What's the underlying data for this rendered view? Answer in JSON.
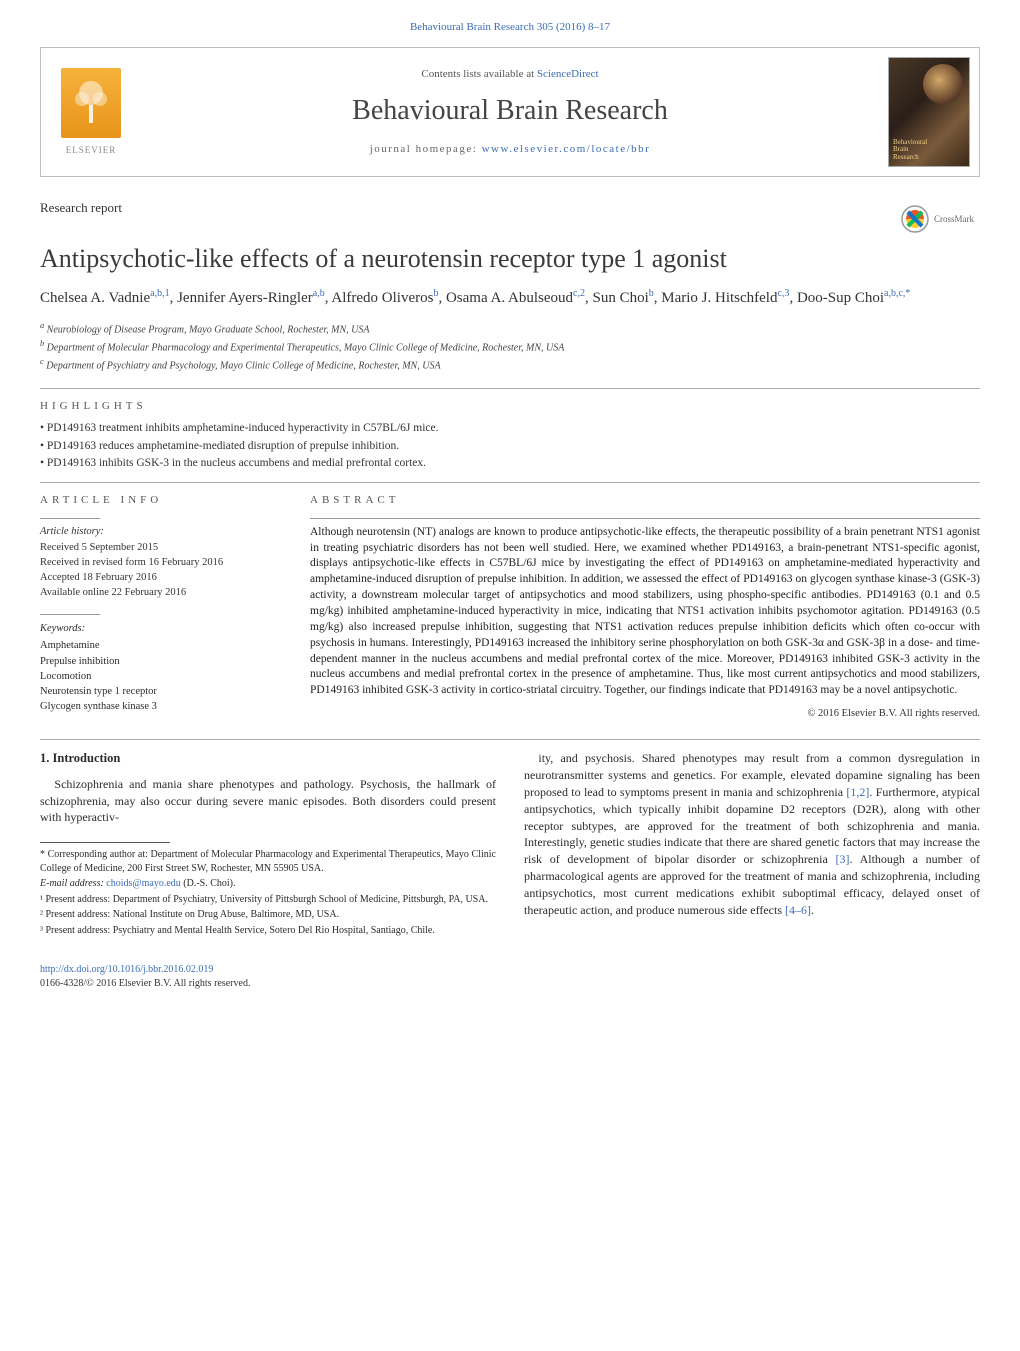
{
  "colors": {
    "link": "#3b6db5",
    "text": "#2b2b2b",
    "border": "#bfbfbf",
    "elsevier_orange": "#e8941b"
  },
  "citation": "Behavioural Brain Research 305 (2016) 8–17",
  "header": {
    "contents_prefix": "Contents lists available at ",
    "contents_link": "ScienceDirect",
    "journal_title": "Behavioural Brain Research",
    "homepage_prefix": "journal homepage: ",
    "homepage_url": "www.elsevier.com/locate/bbr",
    "publisher": "ELSEVIER"
  },
  "article": {
    "type": "Research report",
    "title": "Antipsychotic-like effects of a neurotensin receptor type 1 agonist",
    "crossmark_label": "CrossMark"
  },
  "authors": [
    {
      "name": "Chelsea A. Vadnie",
      "sup": "a,b,1"
    },
    {
      "name": "Jennifer Ayers-Ringler",
      "sup": "a,b"
    },
    {
      "name": "Alfredo Oliveros",
      "sup": "b"
    },
    {
      "name": "Osama A. Abulseoud",
      "sup": "c,2"
    },
    {
      "name": "Sun Choi",
      "sup": "b"
    },
    {
      "name": "Mario J. Hitschfeld",
      "sup": "c,3"
    },
    {
      "name": "Doo-Sup Choi",
      "sup": "a,b,c,*"
    }
  ],
  "affiliations": [
    {
      "label": "a",
      "text": "Neurobiology of Disease Program, Mayo Graduate School, Rochester, MN, USA"
    },
    {
      "label": "b",
      "text": "Department of Molecular Pharmacology and Experimental Therapeutics, Mayo Clinic College of Medicine, Rochester, MN, USA"
    },
    {
      "label": "c",
      "text": "Department of Psychiatry and Psychology, Mayo Clinic College of Medicine, Rochester, MN, USA"
    }
  ],
  "highlights": {
    "label": "HIGHLIGHTS",
    "items": [
      "PD149163 treatment inhibits amphetamine-induced hyperactivity in C57BL/6J mice.",
      "PD149163 reduces amphetamine-mediated disruption of prepulse inhibition.",
      "PD149163 inhibits GSK-3 in the nucleus accumbens and medial prefrontal cortex."
    ]
  },
  "article_info": {
    "label": "ARTICLE INFO",
    "history_title": "Article history:",
    "history": [
      "Received 5 September 2015",
      "Received in revised form 16 February 2016",
      "Accepted 18 February 2016",
      "Available online 22 February 2016"
    ],
    "keywords_title": "Keywords:",
    "keywords": [
      "Amphetamine",
      "Prepulse inhibition",
      "Locomotion",
      "Neurotensin type 1 receptor",
      "Glycogen synthase kinase 3"
    ]
  },
  "abstract": {
    "label": "ABSTRACT",
    "text": "Although neurotensin (NT) analogs are known to produce antipsychotic-like effects, the therapeutic possibility of a brain penetrant NTS1 agonist in treating psychiatric disorders has not been well studied. Here, we examined whether PD149163, a brain-penetrant NTS1-specific agonist, displays antipsychotic-like effects in C57BL/6J mice by investigating the effect of PD149163 on amphetamine-mediated hyperactivity and amphetamine-induced disruption of prepulse inhibition. In addition, we assessed the effect of PD149163 on glycogen synthase kinase-3 (GSK-3) activity, a downstream molecular target of antipsychotics and mood stabilizers, using phospho-specific antibodies. PD149163 (0.1 and 0.5 mg/kg) inhibited amphetamine-induced hyperactivity in mice, indicating that NTS1 activation inhibits psychomotor agitation. PD149163 (0.5 mg/kg) also increased prepulse inhibition, suggesting that NTS1 activation reduces prepulse inhibition deficits which often co-occur with psychosis in humans. Interestingly, PD149163 increased the inhibitory serine phosphorylation on both GSK-3α and GSK-3β in a dose- and time-dependent manner in the nucleus accumbens and medial prefrontal cortex of the mice. Moreover, PD149163 inhibited GSK-3 activity in the nucleus accumbens and medial prefrontal cortex in the presence of amphetamine. Thus, like most current antipsychotics and mood stabilizers, PD149163 inhibited GSK-3 activity in cortico-striatal circuitry. Together, our findings indicate that PD149163 may be a novel antipsychotic.",
    "copyright": "© 2016 Elsevier B.V. All rights reserved."
  },
  "intro": {
    "heading": "1. Introduction",
    "para1": "Schizophrenia and mania share phenotypes and pathology. Psychosis, the hallmark of schizophrenia, may also occur during severe manic episodes. Both disorders could present with hyperactiv-",
    "para2_a": "ity, and psychosis. Shared phenotypes may result from a common dysregulation in neurotransmitter systems and genetics. For example, elevated dopamine signaling has been proposed to lead to symptoms present in mania and schizophrenia ",
    "ref1": "[1,2]",
    "para2_b": ". Furthermore, atypical antipsychotics, which typically inhibit dopamine D2 receptors (D2R), along with other receptor subtypes, are approved for the treatment of both schizophrenia and mania. Interestingly, genetic studies indicate that there are shared genetic factors that may increase the risk of development of bipolar disorder or schizophrenia ",
    "ref2": "[3]",
    "para2_c": ". Although a number of pharmacological agents are approved for the treatment of mania and schizophrenia, including antipsychotics, most current medications exhibit suboptimal efficacy, delayed onset of therapeutic action, and produce numerous side effects ",
    "ref3": "[4–6]",
    "para2_d": "."
  },
  "footnotes": {
    "corresponding": "* Corresponding author at: Department of Molecular Pharmacology and Experimental Therapeutics, Mayo Clinic College of Medicine, 200 First Street SW, Rochester, MN 55905 USA.",
    "email_label": "E-mail address: ",
    "email": "choids@mayo.edu",
    "email_author": " (D.-S. Choi).",
    "notes": [
      "¹ Present address: Department of Psychiatry, University of Pittsburgh School of Medicine, Pittsburgh, PA, USA.",
      "² Present address: National Institute on Drug Abuse, Baltimore, MD, USA.",
      "³ Present address: Psychiatry and Mental Health Service, Sotero Del Rio Hospital, Santiago, Chile."
    ]
  },
  "bottom": {
    "doi": "http://dx.doi.org/10.1016/j.bbr.2016.02.019",
    "issn_line": "0166-4328/© 2016 Elsevier B.V. All rights reserved."
  }
}
